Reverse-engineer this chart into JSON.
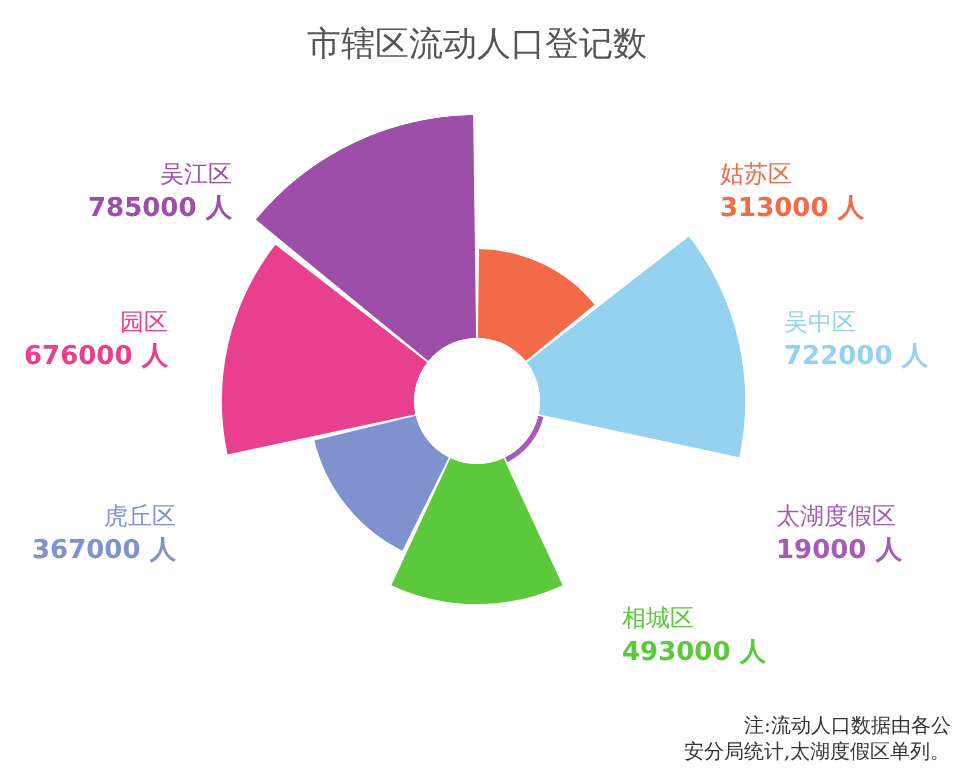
{
  "chart_data": {
    "type": "other",
    "title": "市辖区流动人口登记数",
    "categories": [
      "姑苏区",
      "吴中区",
      "太湖度假区",
      "相城区",
      "虎丘区",
      "园区",
      "吴江区"
    ],
    "values": [
      313000,
      722000,
      19000,
      493000,
      367000,
      676000,
      785000
    ],
    "value_labels": [
      "313000 人",
      "722000 人",
      "19000 人",
      "493000 人",
      "367000 人",
      "676000 人",
      "785000 人"
    ],
    "colors": [
      "#f26a48",
      "#94d2f0",
      "#a45cb4",
      "#5cc83c",
      "#7f92cf",
      "#e8408e",
      "#9c4ea8"
    ],
    "annotations": [
      "注:流动人口数据由各公",
      "安分局统计,太湖度假区单列。"
    ]
  }
}
